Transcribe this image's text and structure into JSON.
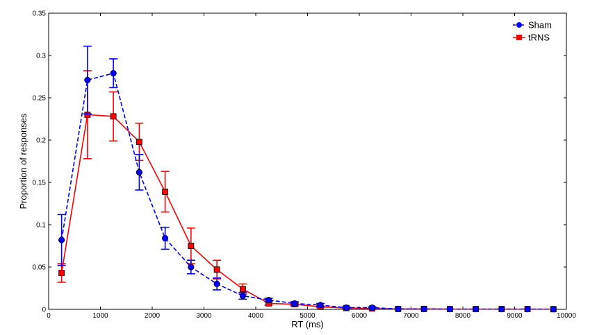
{
  "chart_data": {
    "type": "line",
    "title": "",
    "xlabel": "RT (ms)",
    "ylabel": "Proportion of responses",
    "xlim": [
      0,
      10000
    ],
    "ylim": [
      0,
      0.35
    ],
    "xticks": [
      0,
      1000,
      2000,
      3000,
      4000,
      5000,
      6000,
      7000,
      8000,
      9000,
      10000
    ],
    "yticks": [
      0,
      0.05,
      0.1,
      0.15,
      0.2,
      0.25,
      0.3,
      0.35
    ],
    "xtick_labels": [
      "0",
      "1000",
      "2000",
      "3000",
      "4000",
      "5000",
      "6000",
      "7000",
      "8000",
      "9000",
      "10000"
    ],
    "ytick_labels": [
      "0",
      "0.05",
      "0.1",
      "0.15",
      "0.2",
      "0.25",
      "0.3",
      "0.35"
    ],
    "legend_position": "top-right",
    "grid": false,
    "x": [
      250,
      750,
      1250,
      1750,
      2250,
      2750,
      3250,
      3750,
      4250,
      4750,
      5250,
      5750,
      6250,
      6750,
      7250,
      7750,
      8250,
      8750,
      9250,
      9750
    ],
    "series": [
      {
        "name": "Sham",
        "color": "#0000ff",
        "marker": "circle",
        "line_style": "dashed",
        "values": [
          0.082,
          0.271,
          0.279,
          0.162,
          0.084,
          0.05,
          0.03,
          0.016,
          0.011,
          0.007,
          0.005,
          0.002,
          0.002,
          0.0005,
          0.0005,
          0.0003,
          0.0003,
          0.0003,
          0.0003,
          0.0002
        ],
        "errors": [
          0.03,
          0.04,
          0.017,
          0.021,
          0.013,
          0.008,
          0.007,
          0.004,
          0.002,
          0.002,
          0.002,
          0.001,
          0.001,
          0.0005,
          0.0005,
          0.0003,
          0.0003,
          0.0003,
          0.0003,
          0.0002
        ]
      },
      {
        "name": "tRNS",
        "color": "#ff0000",
        "marker": "square",
        "line_style": "solid",
        "values": [
          0.043,
          0.23,
          0.228,
          0.198,
          0.139,
          0.075,
          0.047,
          0.024,
          0.007,
          0.006,
          0.003,
          0.0015,
          0.001,
          0.0005,
          0.0005,
          0.0003,
          0.0003,
          0.0003,
          0.0003,
          0.0002
        ],
        "errors": [
          0.011,
          0.052,
          0.029,
          0.022,
          0.024,
          0.021,
          0.011,
          0.006,
          0.002,
          0.002,
          0.001,
          0.001,
          0.001,
          0.0005,
          0.0005,
          0.0003,
          0.0003,
          0.0003,
          0.0003,
          0.0002
        ]
      }
    ]
  }
}
